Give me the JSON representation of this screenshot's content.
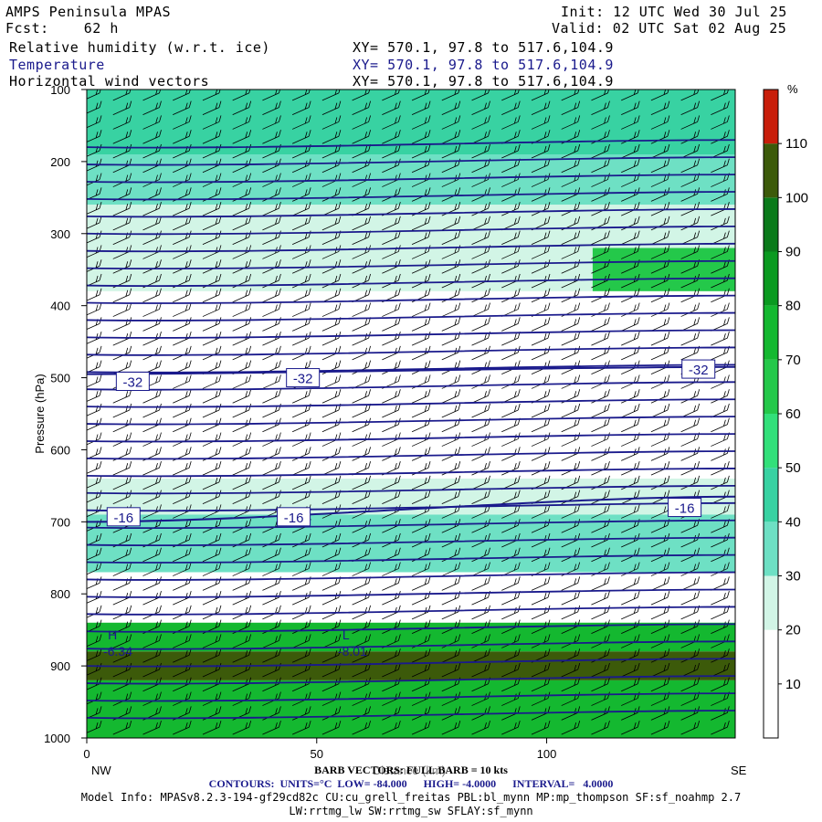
{
  "header": {
    "model": "AMPS Peninsula MPAS",
    "forecast": "Fcst:    62 h",
    "init": "Init: 12 UTC Wed 30 Jul 25",
    "valid": "Valid: 02 UTC Sat 02 Aug 25",
    "fields": [
      {
        "name": "Relative humidity (w.r.t. ice)",
        "xy": "XY= 570.1, 97.8 to 517.6,104.9",
        "color": "#000000"
      },
      {
        "name": "Temperature",
        "xy": "XY= 570.1, 97.8 to 517.6,104.9",
        "color": "#1a1a8c"
      },
      {
        "name": "Horizontal wind vectors",
        "xy": "XY= 570.1, 97.8 to 517.6,104.9",
        "color": "#000000"
      }
    ]
  },
  "colorbar": {
    "unit": "%",
    "levels": [
      0,
      10,
      20,
      30,
      40,
      50,
      60,
      70,
      80,
      90,
      100,
      110,
      120
    ],
    "tick_labels": [
      "10",
      "20",
      "30",
      "40",
      "50",
      "60",
      "70",
      "80",
      "90",
      "100",
      "110"
    ],
    "colors": [
      "#ffffff",
      "#ffffff",
      "#ffffff",
      "#d2f5e6",
      "#6ee0c4",
      "#38d2a2",
      "#32e07a",
      "#24c84a",
      "#14b830",
      "#0a9a20",
      "#0a7a1a",
      "#3c5a0a",
      "#c81e0a"
    ]
  },
  "chart_data": {
    "type": "heatmap",
    "title": "",
    "xlabel": "Distance (km)",
    "ylabel": "Pressure (hPa)",
    "xlim": [
      0,
      141
    ],
    "ylim": [
      1000,
      100
    ],
    "x_ticks": [
      "0",
      "50",
      "100"
    ],
    "x_tick_values": [
      0,
      50,
      100
    ],
    "y_ticks": [
      "100",
      "200",
      "300",
      "400",
      "500",
      "600",
      "700",
      "800",
      "900",
      "1000"
    ],
    "y_tick_values": [
      100,
      200,
      300,
      400,
      500,
      600,
      700,
      800,
      900,
      1000
    ],
    "endpoints": {
      "left": "NW",
      "right": "SE"
    },
    "rh_layers": [
      {
        "p_top": 100,
        "p_bot": 190,
        "rh": 50
      },
      {
        "p_top": 190,
        "p_bot": 260,
        "rh": 45
      },
      {
        "p_top": 260,
        "p_bot": 380,
        "rh": 35
      },
      {
        "p_top": 320,
        "p_bot": 380,
        "rh": 75,
        "x_start": 110
      },
      {
        "p_top": 380,
        "p_bot": 640,
        "rh": 15
      },
      {
        "p_top": 640,
        "p_bot": 690,
        "rh": 30
      },
      {
        "p_top": 690,
        "p_bot": 770,
        "rh": 40
      },
      {
        "p_top": 770,
        "p_bot": 840,
        "rh": 25
      },
      {
        "p_top": 840,
        "p_bot": 880,
        "rh": 80
      },
      {
        "p_top": 880,
        "p_bot": 920,
        "rh": 110
      },
      {
        "p_top": 920,
        "p_bot": 1000,
        "rh": 85
      }
    ],
    "isotherms": [
      {
        "value": -32,
        "p_left": 495,
        "p_right": 485,
        "label": "-32"
      },
      {
        "value": -16,
        "p_left": 700,
        "p_right": 665,
        "label": "-16"
      }
    ],
    "contour_labels": [
      "-32",
      "-32",
      "-32",
      "-16",
      "-16",
      "-16"
    ],
    "extrema": [
      {
        "type": "H",
        "value": "-6.34",
        "x": 3,
        "p": 820
      },
      {
        "type": "L",
        "value": "-8.01",
        "x": 54,
        "p": 820
      }
    ]
  },
  "footer": {
    "barb": "BARB VECTORS: FULL BARB = 10 kts",
    "xlabel_overlap": "Distance (km)",
    "contours": "CONTOURS:  UNITS=°C  LOW= -84.000      HIGH= -4.0000      INTERVAL=   4.0000",
    "model_info_1": "Model Info: MPASv8.2.3-194-gf29cd82c CU:cu_grell_freitas PBL:bl_mynn MP:mp_thompson SF:sf_noahmp 2.7",
    "model_info_2": "LW:rrtmg_lw SW:rrtmg_sw SFLAY:sf_mynn"
  }
}
